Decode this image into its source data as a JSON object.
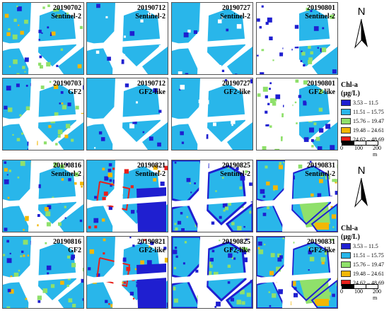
{
  "legend_title": "Chl-a\n(μg/L)",
  "legend_items": [
    {
      "label": "3.53 – 11.5",
      "color": "#1f1fd0"
    },
    {
      "label": "11.51 – 15.75",
      "color": "#29b6ea"
    },
    {
      "label": "15.76 – 19.47",
      "color": "#8fe06b"
    },
    {
      "label": "19.48 – 24.61",
      "color": "#f2b705"
    },
    {
      "label": "24.62 – 48.69",
      "color": "#e8201b"
    }
  ],
  "north_label": "N",
  "scale": {
    "labels": [
      "0",
      "100",
      "200 m"
    ]
  },
  "groups": [
    {
      "panels": [
        {
          "date": "20190702",
          "sensor": "Sentinel-2",
          "style": "speckle"
        },
        {
          "date": "20190712",
          "sensor": "Sentinel-2",
          "style": "plain"
        },
        {
          "date": "20190727",
          "sensor": "Sentinel-2",
          "style": "plain"
        },
        {
          "date": "20190801",
          "sensor": "Sentinel-2",
          "style": "partial"
        },
        {
          "date": "20190703",
          "sensor": "GF2",
          "style": "speckle"
        },
        {
          "date": "20190712",
          "sensor": "GF2-like",
          "style": "plain"
        },
        {
          "date": "20190727",
          "sensor": "GF2-like",
          "style": "plain"
        },
        {
          "date": "20190801",
          "sensor": "GF2-like",
          "style": "partial"
        }
      ]
    },
    {
      "panels": [
        {
          "date": "20190816",
          "sensor": "Sentinel-2",
          "style": "speckle"
        },
        {
          "date": "20190821",
          "sensor": "Sentinel-2",
          "style": "dark"
        },
        {
          "date": "20190825",
          "sensor": "Sentinel-2",
          "style": "edge"
        },
        {
          "date": "20190831",
          "sensor": "Sentinel-2",
          "style": "green"
        },
        {
          "date": "20190816",
          "sensor": "GF2",
          "style": "speckle"
        },
        {
          "date": "20190821",
          "sensor": "GF2-like",
          "style": "dark"
        },
        {
          "date": "20190825",
          "sensor": "GF2-like",
          "style": "edge"
        },
        {
          "date": "20190831",
          "sensor": "GF2-like",
          "style": "green"
        }
      ]
    }
  ]
}
